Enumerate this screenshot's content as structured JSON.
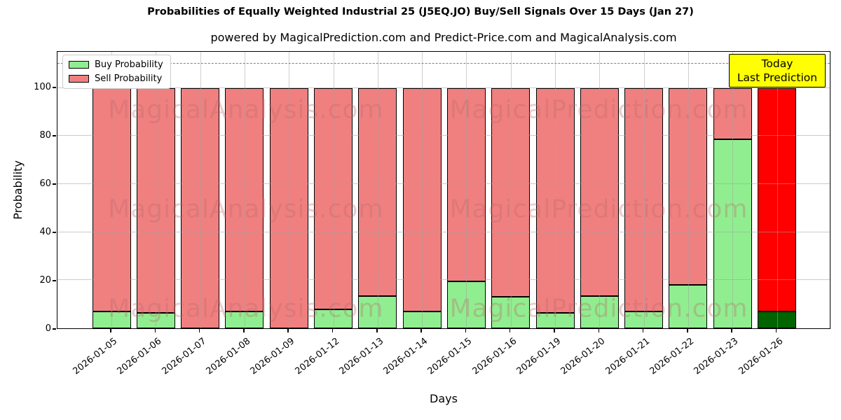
{
  "chart_data": {
    "type": "bar",
    "stacked": true,
    "title": "Probabilities of Equally Weighted Industrial 25  (J5EQ.JO) Buy/Sell Signals Over 15 Days (Jan 27)",
    "subtitle": "powered by MagicalPrediction.com and Predict-Price.com and MagicalAnalysis.com",
    "xlabel": "Days",
    "ylabel": "Probability",
    "ylim": [
      0,
      115
    ],
    "yticks": [
      0,
      20,
      40,
      60,
      80,
      100
    ],
    "dashed_line_y": 110,
    "grid": true,
    "legend_position": "upper-left",
    "legend": [
      {
        "label": "Buy Probability",
        "color": "#90EE90"
      },
      {
        "label": "Sell Probability",
        "color": "#F08080"
      }
    ],
    "categories": [
      "2026-01-05",
      "2026-01-06",
      "2026-01-07",
      "2026-01-08",
      "2026-01-09",
      "2026-01-12",
      "2026-01-13",
      "2026-01-14",
      "2026-01-15",
      "2026-01-16",
      "2026-01-19",
      "2026-01-20",
      "2026-01-21",
      "2026-01-22",
      "2026-01-23",
      "2026-01-26"
    ],
    "series": [
      {
        "name": "Buy Probability",
        "values": [
          7,
          6.5,
          0,
          7,
          0,
          8,
          13.5,
          7,
          19.5,
          13,
          6.5,
          13.5,
          7,
          18,
          78.5,
          7
        ]
      },
      {
        "name": "Sell Probability",
        "values": [
          93,
          93.5,
          100,
          93,
          100,
          92,
          86.5,
          93,
          80.5,
          87,
          93.5,
          86.5,
          93,
          82,
          21.5,
          93
        ]
      }
    ],
    "today_index": 15,
    "today_colors": {
      "buy": "#006400",
      "sell": "#FF0000"
    },
    "annotation_box": {
      "lines": [
        "Today",
        "Last Prediction"
      ],
      "background": "#FFFF00",
      "border": "#000000"
    },
    "watermarks": {
      "texts": [
        "MagicalAnalysis.com",
        "MagicalPrediction.com"
      ],
      "x_percents": [
        24.4,
        70.1
      ],
      "y_percents": [
        21,
        57,
        93
      ]
    }
  }
}
